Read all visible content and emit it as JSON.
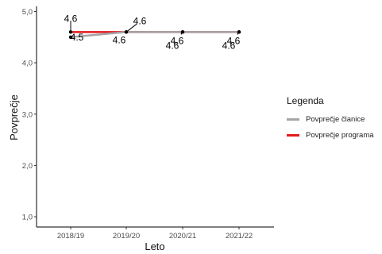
{
  "chart_data": {
    "type": "line",
    "xlabel": "Leto",
    "ylabel": "Povprečje",
    "categories": [
      "2018/19",
      "2019/20",
      "2020/21",
      "2021/22"
    ],
    "ylim": [
      0.8,
      5.1
    ],
    "yticks": [
      "1,0",
      "2,0",
      "3,0",
      "4,0",
      "5,0"
    ],
    "ytick_values": [
      1,
      2,
      3,
      4,
      5
    ],
    "grid": false,
    "legend": {
      "title": "Legenda",
      "placement": "right"
    },
    "series": [
      {
        "name": "Povprečje članice",
        "color": "#a6a6a6",
        "values": [
          4.5,
          4.6,
          4.6,
          4.6
        ],
        "labels": [
          "4.5",
          "4.6",
          "4.6",
          "4.6"
        ]
      },
      {
        "name": "Povprečje programa",
        "color": "#e31a1c",
        "values": [
          4.6,
          4.6,
          4.6,
          4.6
        ],
        "labels": [
          "4.6",
          "4.6",
          "4.6",
          "4.6"
        ]
      }
    ]
  }
}
